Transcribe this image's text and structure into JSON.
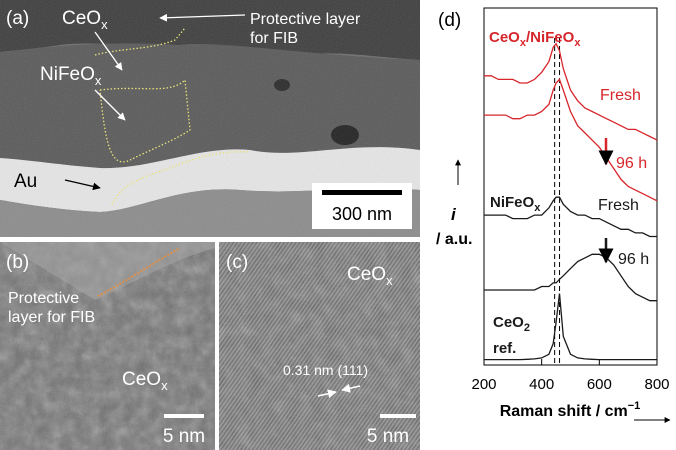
{
  "panels": {
    "a": {
      "tag": "(a)",
      "ceo": [
        "CeO",
        "x"
      ],
      "nifeo": [
        "NiFeO",
        "x"
      ],
      "protective": [
        "Protective layer",
        "for FIB"
      ],
      "au": "Au",
      "scale": "300 nm"
    },
    "b": {
      "tag": "(b)",
      "protective": [
        "Protective",
        "layer for FIB"
      ],
      "ceo": [
        "CeO",
        "x"
      ],
      "scale": "5 nm"
    },
    "c": {
      "tag": "(c)",
      "ceo": [
        "CeO",
        "x"
      ],
      "spacing": "0.31 nm (111)",
      "scale": "5 nm"
    }
  },
  "chart_data": {
    "type": "line",
    "tag": "(d)",
    "x_label": [
      "Raman shift / cm",
      "−1"
    ],
    "y_label": [
      "i",
      "/ a.u."
    ],
    "x": [
      200,
      225,
      250,
      275,
      300,
      325,
      350,
      375,
      400,
      425,
      440,
      450,
      462,
      475,
      500,
      525,
      550,
      575,
      600,
      625,
      650,
      675,
      700,
      725,
      750,
      775,
      800
    ],
    "xlim": [
      200,
      800
    ],
    "xticks": [
      200,
      400,
      600,
      800
    ],
    "ylim": [
      0,
      100
    ],
    "reference_lines": [
      445,
      462
    ],
    "groups": [
      {
        "parts": [
          "CeO",
          "x",
          "/NiFeO",
          "x"
        ],
        "color": "#d7262b"
      },
      {
        "parts": [
          "NiFeO",
          "x"
        ],
        "color": "#1a1a1a"
      },
      {
        "parts": [
          "CeO",
          "2"
        ],
        "note": "ref.",
        "color": "#1a1a1a"
      }
    ],
    "series": [
      {
        "name": "Fresh",
        "color": "#d7262b",
        "values": [
          81,
          81,
          80,
          80,
          80,
          79,
          79,
          80,
          82,
          85,
          89,
          90,
          88,
          83,
          77,
          74,
          72,
          71,
          70,
          69,
          68,
          67,
          66,
          66,
          65,
          64,
          63
        ]
      },
      {
        "name": "96 h",
        "color": "#d7262b",
        "values": [
          70,
          70,
          70,
          70,
          69,
          69,
          70,
          70,
          71,
          73,
          77,
          79,
          80,
          77,
          71,
          67,
          65,
          63,
          61,
          58,
          55,
          52,
          50,
          49,
          48,
          47,
          46
        ]
      },
      {
        "name": "Fresh",
        "color": "#1a1a1a",
        "values": [
          42,
          42,
          42,
          42,
          41,
          41,
          41,
          42,
          42,
          44,
          46,
          47,
          47,
          45,
          43,
          42,
          42,
          41,
          41,
          40,
          39,
          38,
          38,
          37,
          37,
          36,
          36
        ]
      },
      {
        "name": "96 h",
        "color": "#1a1a1a",
        "values": [
          21,
          21,
          21,
          21,
          21,
          21,
          21,
          21,
          22,
          22,
          23,
          23,
          24,
          25,
          27,
          29,
          30,
          31,
          31,
          30,
          28,
          25,
          22,
          20,
          19,
          18,
          18
        ]
      },
      {
        "color": "#1a1a1a",
        "values": [
          1.5,
          1.5,
          1.5,
          1.5,
          1.5,
          1.5,
          1.6,
          1.7,
          2,
          3,
          6,
          12,
          20,
          8,
          3,
          2,
          1.7,
          1.6,
          1.5,
          1.5,
          1.5,
          1.5,
          1.5,
          1.5,
          1.5,
          1.5,
          1.5
        ]
      }
    ]
  }
}
